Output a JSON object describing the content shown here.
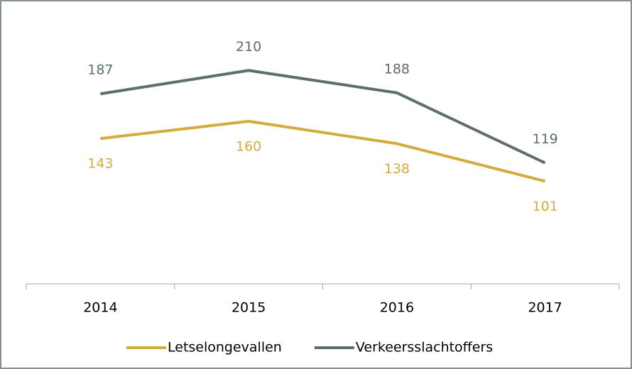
{
  "chart_data": {
    "type": "line",
    "categories": [
      "2014",
      "2015",
      "2016",
      "2017"
    ],
    "series": [
      {
        "name": "Letselongevallen",
        "color": "#d4ac3e",
        "values": [
          143,
          160,
          138,
          101
        ]
      },
      {
        "name": "Verkeersslachtoffers",
        "color": "#5e6e6e",
        "values": [
          187,
          210,
          188,
          119
        ]
      }
    ],
    "ylim": [
      0,
      250
    ],
    "legend": "bottom"
  }
}
